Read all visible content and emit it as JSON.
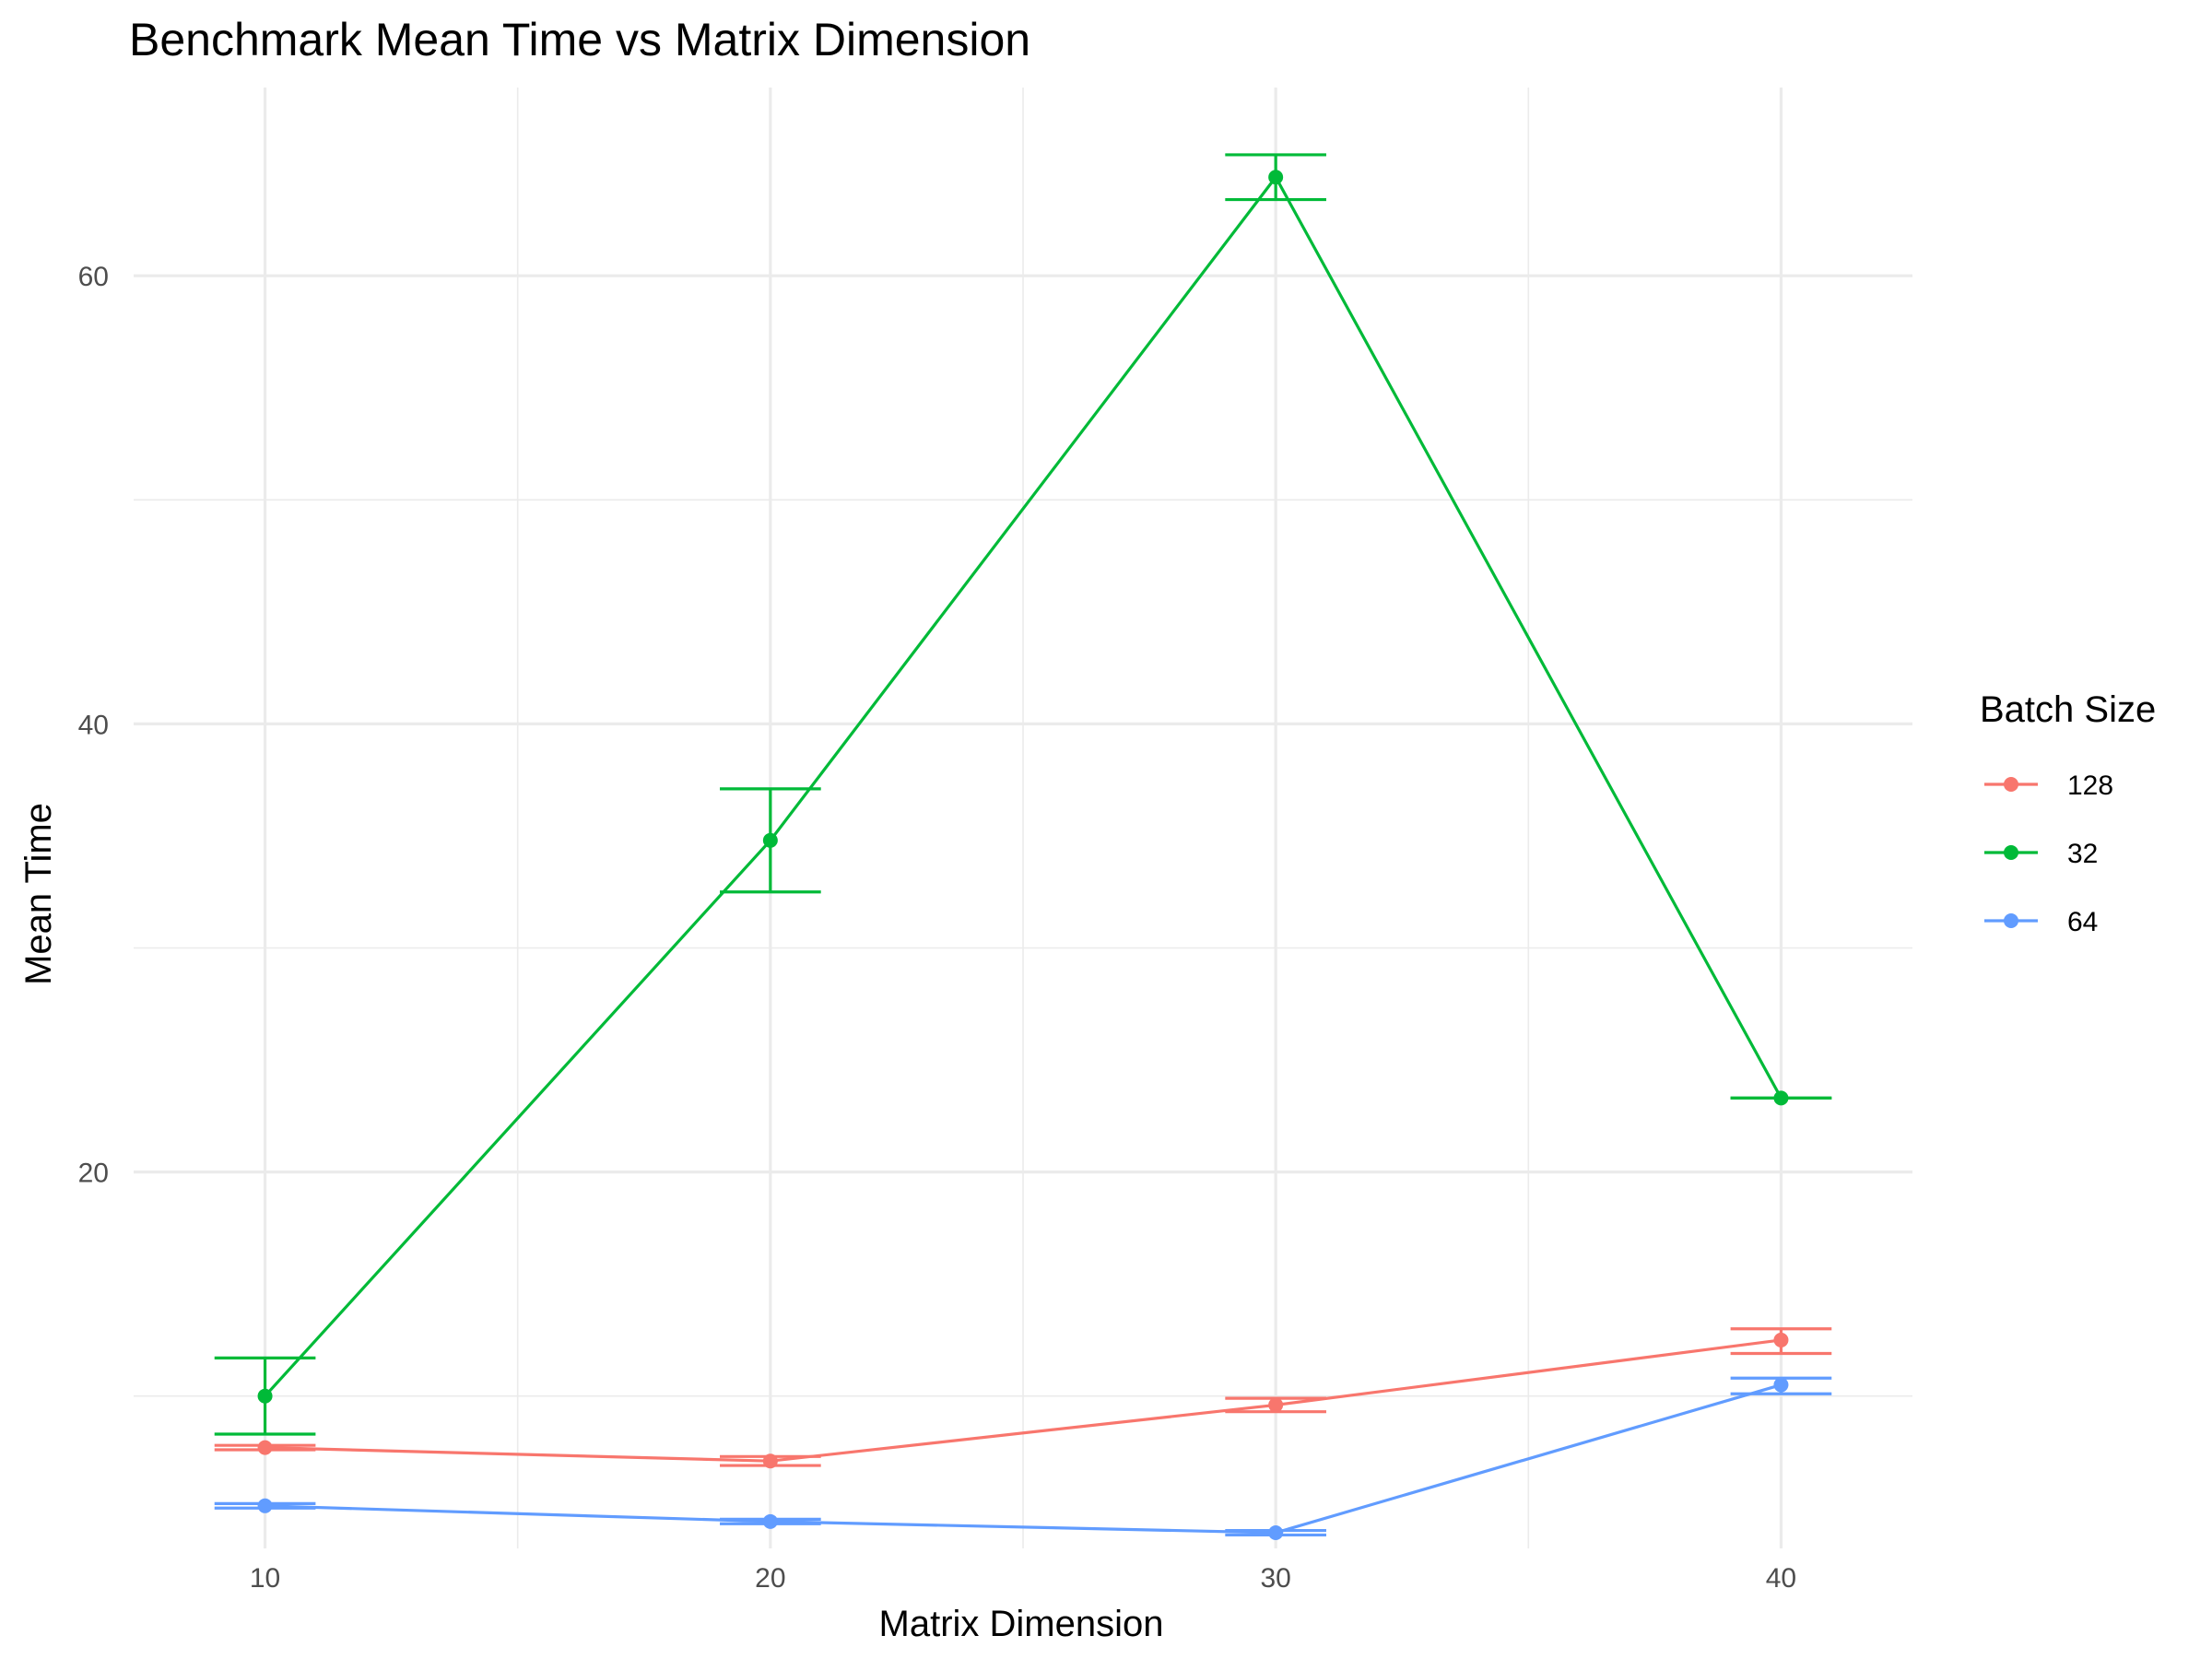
{
  "chart_data": {
    "type": "line",
    "title": "Benchmark Mean Time vs Matrix Dimension",
    "xlabel": "Matrix Dimension",
    "ylabel": "Mean Time",
    "x": [
      10,
      20,
      30,
      40
    ],
    "xlim": [
      7.4,
      42.6
    ],
    "ylim": [
      3.2,
      68.4
    ],
    "x_major_ticks": [
      10,
      20,
      30,
      40
    ],
    "x_minor_ticks": [
      15,
      25,
      35
    ],
    "y_major_ticks": [
      20,
      40,
      60
    ],
    "y_minor_ticks": [
      10,
      30,
      50
    ],
    "grid": true,
    "legend": {
      "title": "Batch Size",
      "position": "right"
    },
    "series": [
      {
        "name": "128",
        "color": "#F8766D",
        "values": [
          7.7,
          7.1,
          9.6,
          12.5
        ],
        "lower": [
          7.6,
          6.9,
          9.3,
          11.9
        ],
        "upper": [
          7.8,
          7.3,
          9.9,
          13.0
        ]
      },
      {
        "name": "32",
        "color": "#00BA38",
        "values": [
          10.0,
          34.8,
          64.4,
          23.3
        ],
        "lower": [
          8.3,
          32.5,
          63.4,
          23.3
        ],
        "upper": [
          11.7,
          37.1,
          65.4,
          23.3
        ]
      },
      {
        "name": "64",
        "color": "#619CFF",
        "values": [
          5.1,
          4.4,
          3.9,
          10.5
        ],
        "lower": [
          5.0,
          4.3,
          3.8,
          10.1
        ],
        "upper": [
          5.2,
          4.5,
          4.0,
          10.8
        ]
      }
    ]
  }
}
